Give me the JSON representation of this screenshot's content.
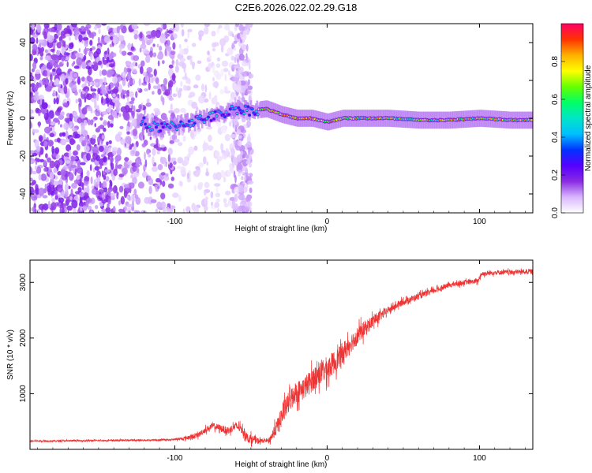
{
  "title": "C2E6.2026.022.02.29.G18",
  "chart_data": [
    {
      "type": "heatmap",
      "xlabel": "Height of straight line (km)",
      "ylabel": "Frequency (Hz)",
      "xlim": [
        -195,
        135
      ],
      "ylim": [
        -50,
        50
      ],
      "xticks": [
        -100,
        0,
        100
      ],
      "yticks": [
        -40,
        -20,
        0,
        20,
        40
      ],
      "colorbar": {
        "label": "Normalized spectral amplitude",
        "range": [
          0.0,
          1.0
        ],
        "ticks": [
          "0.0",
          "0.2",
          "0.4",
          "0.6",
          "0.8"
        ],
        "colors": [
          "#ffffff",
          "#d8b6ff",
          "#8a2be2",
          "#5500ff",
          "#0033ff",
          "#00bfff",
          "#00e5c8",
          "#00ff66",
          "#66ff00",
          "#ffff00",
          "#ffb000",
          "#ff3300",
          "#ff0066"
        ]
      },
      "ridge": {
        "description_free": true,
        "points": [
          [
            -120,
            -4
          ],
          [
            -110,
            -5
          ],
          [
            -100,
            -4
          ],
          [
            -90,
            -2
          ],
          [
            -80,
            0
          ],
          [
            -70,
            2
          ],
          [
            -60,
            5
          ],
          [
            -50,
            4
          ],
          [
            -40,
            5
          ],
          [
            -30,
            2
          ],
          [
            -20,
            0
          ],
          [
            -10,
            0
          ],
          [
            0,
            -2
          ],
          [
            10,
            0
          ],
          [
            20,
            0
          ],
          [
            40,
            0
          ],
          [
            60,
            -1
          ],
          [
            80,
            -1
          ],
          [
            100,
            0
          ],
          [
            120,
            -1
          ],
          [
            135,
            -1
          ]
        ]
      }
    },
    {
      "type": "line",
      "xlabel": "Height of straight line (km)",
      "ylabel": "SNR (10 * v/v)",
      "xlim": [
        -195,
        135
      ],
      "ylim": [
        0,
        3400
      ],
      "xticks": [
        -100,
        0,
        100
      ],
      "yticks": [
        1000,
        2000,
        3000
      ],
      "series": [
        {
          "name": "SNR",
          "color": "#ee3333",
          "points": [
            [
              -195,
              150
            ],
            [
              -180,
              150
            ],
            [
              -160,
              155
            ],
            [
              -140,
              160
            ],
            [
              -120,
              165
            ],
            [
              -105,
              170
            ],
            [
              -95,
              190
            ],
            [
              -85,
              250
            ],
            [
              -80,
              350
            ],
            [
              -75,
              420
            ],
            [
              -70,
              380
            ],
            [
              -65,
              330
            ],
            [
              -60,
              420
            ],
            [
              -56,
              360
            ],
            [
              -52,
              200
            ],
            [
              -45,
              150
            ],
            [
              -38,
              160
            ],
            [
              -32,
              450
            ],
            [
              -28,
              700
            ],
            [
              -22,
              1000
            ],
            [
              -15,
              1100
            ],
            [
              -8,
              1300
            ],
            [
              0,
              1450
            ],
            [
              8,
              1650
            ],
            [
              15,
              1900
            ],
            [
              22,
              2100
            ],
            [
              30,
              2300
            ],
            [
              40,
              2500
            ],
            [
              50,
              2650
            ],
            [
              60,
              2750
            ],
            [
              70,
              2850
            ],
            [
              80,
              2950
            ],
            [
              90,
              3000
            ],
            [
              99,
              3020
            ],
            [
              101,
              3150
            ],
            [
              110,
              3180
            ],
            [
              120,
              3180
            ],
            [
              135,
              3200
            ]
          ],
          "noise": [
            [
              -195,
              30
            ],
            [
              -100,
              30
            ],
            [
              -90,
              80
            ],
            [
              -50,
              150
            ],
            [
              -40,
              40
            ],
            [
              -30,
              350
            ],
            [
              0,
              400
            ],
            [
              20,
              300
            ],
            [
              40,
              120
            ],
            [
              80,
              80
            ],
            [
              135,
              80
            ]
          ]
        }
      ]
    }
  ]
}
